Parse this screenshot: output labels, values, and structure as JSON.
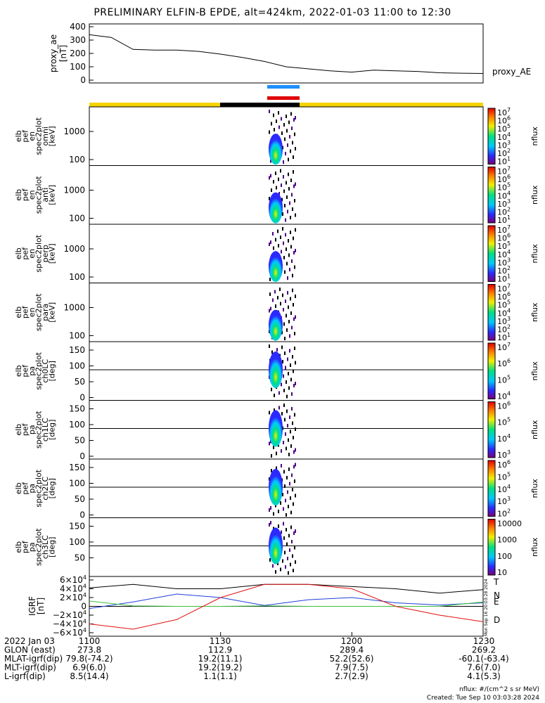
{
  "title": "PRELIMINARY ELFIN-B EPDE, alt=424km, 2022-01-03 11:00 to 12:30",
  "proxy_ae": {
    "ylabel": [
      "proxy_ae",
      "[nT]"
    ],
    "yticks": [
      "400",
      "300",
      "200",
      "100",
      "0"
    ],
    "series_label": "proxy_AE"
  },
  "panels": [
    {
      "ylabel": [
        "elb",
        "pef",
        "en",
        "spec2plot",
        "omni",
        "[keV]"
      ],
      "yticks": [
        "1000",
        "100"
      ],
      "cb_ticks": [
        "10^7",
        "10^6",
        "10^5",
        "10^4",
        "10^3",
        "10^2",
        "10^1"
      ],
      "cb_label": "nflux"
    },
    {
      "ylabel": [
        "elb",
        "pef",
        "en",
        "spec2plot",
        "anti",
        "[keV]"
      ],
      "yticks": [
        "1000",
        "100"
      ],
      "cb_ticks": [
        "10^7",
        "10^6",
        "10^5",
        "10^4",
        "10^3",
        "10^2",
        "10^1"
      ],
      "cb_label": "nflux"
    },
    {
      "ylabel": [
        "elb",
        "pef",
        "en",
        "spec2plot",
        "perp",
        "[keV]"
      ],
      "yticks": [
        "1000",
        "100"
      ],
      "cb_ticks": [
        "10^7",
        "10^6",
        "10^5",
        "10^4",
        "10^3",
        "10^2",
        "10^1"
      ],
      "cb_label": "nflux"
    },
    {
      "ylabel": [
        "elb",
        "pef",
        "en",
        "spec2plot",
        "para",
        "[keV]"
      ],
      "yticks": [
        "1000",
        "100"
      ],
      "cb_ticks": [
        "10^7",
        "10^6",
        "10^5",
        "10^4",
        "10^3",
        "10^2",
        "10^1"
      ],
      "cb_label": "nflux"
    },
    {
      "ylabel": [
        "elb",
        "pef",
        "pa",
        "spec2plot",
        "ch0LC",
        "[deg]"
      ],
      "yticks": [
        "150",
        "100",
        "50",
        "0"
      ],
      "cb_ticks": [
        "10^7",
        "10^6",
        "10^5",
        "10^4"
      ],
      "cb_label": "nflux"
    },
    {
      "ylabel": [
        "elb",
        "pef",
        "pa",
        "spec2plot",
        "ch1LC",
        "[deg]"
      ],
      "yticks": [
        "150",
        "100",
        "50",
        "0"
      ],
      "cb_ticks": [
        "10^6",
        "10^5",
        "10^4",
        "10^3"
      ],
      "cb_label": "nflux"
    },
    {
      "ylabel": [
        "elb",
        "pef",
        "pa",
        "spec2plot",
        "ch2LC",
        "[deg]"
      ],
      "yticks": [
        "150",
        "100",
        "50",
        "0"
      ],
      "cb_ticks": [
        "10^6",
        "10^5",
        "10^4",
        "10^3",
        "10^2"
      ],
      "cb_label": "nflux"
    },
    {
      "ylabel": [
        "elb",
        "pef",
        "pa",
        "spec2plot",
        "ch3LC",
        "[deg]"
      ],
      "yticks": [
        "150",
        "100",
        "50"
      ],
      "cb_ticks": [
        "10000",
        "1000",
        "100",
        "10"
      ],
      "cb_label": "nflux"
    }
  ],
  "igrf": {
    "ylabel": [
      "IGRF",
      "[nT]"
    ],
    "yticks": [
      "6×10^4",
      "4×10^4",
      "2×10^4",
      "0",
      "−2×10^4",
      "−4×10^4",
      "−6×10^4"
    ],
    "legend": [
      "T",
      "N",
      "E",
      "D"
    ],
    "side_note": "Mon Sep 16 20:03:28 2024"
  },
  "footer_rows": [
    {
      "label": "2022 Jan 03",
      "values": [
        "1100",
        "1130",
        "1200",
        "1230"
      ]
    },
    {
      "label": "GLON (east)",
      "values": [
        "273.8",
        "112.9",
        "289.4",
        "269.2"
      ]
    },
    {
      "label": "MLAT-igrf(dip)",
      "values": [
        "79.8(-74.2)",
        "19.2(11.1)",
        "52.2(52.6)",
        "-60.1(-63.4)"
      ]
    },
    {
      "label": "MLT-igrf(dip)",
      "values": [
        "6.9(6.0)",
        "19.2(19.2)",
        "7.9(7.5)",
        "7.6(7.0)"
      ]
    },
    {
      "label": "L-igrf(dip)",
      "values": [
        "8.5(14.4)",
        "1.1(1.1)",
        "2.7(2.9)",
        "4.1(5.3)"
      ]
    }
  ],
  "footnote1": "nflux: #/(cm^2 s sr MeV)",
  "footnote2": "Created: Tue Sep 10 03:03:28 2024",
  "colors": {
    "bar_yellow": "#f5d300",
    "bar_black": "#000000",
    "bar_blue": "#1e90ff",
    "bar_red": "#e00000",
    "T": "#000000",
    "N": "#1f3fd8",
    "E": "#3cc03c",
    "D": "#e01010"
  },
  "chart_data": {
    "type": "heatmap",
    "x_ticks": [
      "1100",
      "1130",
      "1200",
      "1230"
    ],
    "proxy_ae": {
      "x_minutes": [
        0,
        5,
        10,
        15,
        20,
        25,
        30,
        35,
        40,
        45,
        50,
        55,
        60,
        65,
        70,
        75,
        80,
        85,
        90
      ],
      "values": [
        340,
        320,
        230,
        225,
        225,
        215,
        195,
        170,
        140,
        100,
        85,
        70,
        60,
        75,
        70,
        65,
        55,
        52,
        50
      ],
      "ylim": [
        0,
        400
      ]
    },
    "igrf": {
      "series": [
        {
          "name": "T",
          "x_minutes": [
            0,
            10,
            20,
            30,
            40,
            50,
            60,
            70,
            80,
            90
          ],
          "values": [
            42000,
            50000,
            40000,
            40000,
            50000,
            50000,
            45000,
            40000,
            30000,
            38000
          ]
        },
        {
          "name": "N",
          "x_minutes": [
            0,
            10,
            20,
            30,
            40,
            50,
            60,
            70,
            80,
            90
          ],
          "values": [
            -5000,
            10000,
            28000,
            20000,
            2000,
            15000,
            20000,
            8000,
            3000,
            8000
          ]
        },
        {
          "name": "E",
          "x_minutes": [
            0,
            10,
            20,
            30,
            40,
            50,
            60,
            70,
            80,
            90
          ],
          "values": [
            12000,
            1000,
            0,
            0,
            1000,
            0,
            0,
            0,
            0,
            10000
          ]
        },
        {
          "name": "D",
          "x_minutes": [
            0,
            10,
            20,
            30,
            40,
            50,
            60,
            70,
            80,
            90
          ],
          "values": [
            -40000,
            -52000,
            -30000,
            20000,
            50000,
            50000,
            40000,
            0,
            -20000,
            -35000
          ]
        }
      ],
      "ylim": [
        -60000,
        60000
      ]
    }
  }
}
